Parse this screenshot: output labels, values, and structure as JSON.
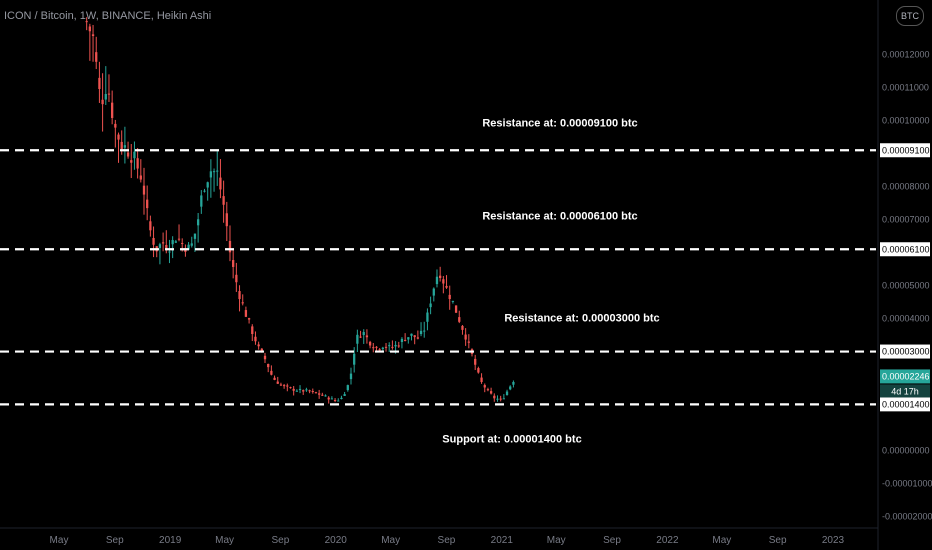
{
  "header": {
    "title": "ICON / Bitcoin, 1W, BINANCE, Heikin Ashi",
    "currency_badge": "BTC"
  },
  "colors": {
    "up": "#26a69a",
    "down": "#ef5350",
    "background": "#000000",
    "level_line": "#ffffff",
    "axis_text": "#787b86"
  },
  "chart_data": {
    "type": "candlestick",
    "symbol": "ICON / Bitcoin",
    "interval": "1W",
    "exchange": "BINANCE",
    "style": "Heikin Ashi",
    "x_tick_labels": [
      "May",
      "Sep",
      "2019",
      "May",
      "Sep",
      "2020",
      "May",
      "Sep",
      "2021",
      "May",
      "Sep",
      "2022",
      "May",
      "Sep",
      "2023"
    ],
    "x_tick_dates": [
      "2018-05",
      "2018-09",
      "2019-01",
      "2019-05",
      "2019-09",
      "2020-01",
      "2020-05",
      "2020-09",
      "2021-01",
      "2021-05",
      "2021-09",
      "2022-01",
      "2022-05",
      "2022-09",
      "2023-01"
    ],
    "y_tick_labels": [
      "0.00012000",
      "0.00011000",
      "0.00010000",
      "0.00008000",
      "0.00007000",
      "0.00005000",
      "0.00004000",
      "0.00000000",
      "-0.00001000",
      "-0.00002000"
    ],
    "y_tick_values": [
      0.00012,
      0.00011,
      0.0001,
      8e-05,
      7e-05,
      5e-05,
      4e-05,
      0,
      -1e-05,
      -2e-05
    ],
    "ylim": [
      -2.15e-05,
      0.0001305
    ],
    "current_price": {
      "label": "0.00002246",
      "value": 2.246e-05,
      "countdown": "4d 17h"
    },
    "levels": [
      {
        "value": 9.1e-05,
        "label": "0.00009100",
        "text": "Resistance at: 0.00009100 btc"
      },
      {
        "value": 6.1e-05,
        "label": "0.00006100",
        "text": "Resistance at: 0.00006100 btc"
      },
      {
        "value": 3e-05,
        "label": "0.00003000",
        "text": "Resistance at: 0.00003000 btc"
      },
      {
        "value": 1.4e-05,
        "label": "0.00001400",
        "text": "Support at: 0.00001400 btc"
      }
    ],
    "series_points": [
      [
        "2018-07-01",
        0.00013
      ],
      [
        "2018-07-15",
        0.000125
      ],
      [
        "2018-08-01",
        0.000105
      ],
      [
        "2018-08-15",
        0.000112
      ],
      [
        "2018-09-01",
        9.8e-05
      ],
      [
        "2018-09-15",
        9.3e-05
      ],
      [
        "2018-10-01",
        9.1e-05
      ],
      [
        "2018-10-15",
        8.8e-05
      ],
      [
        "2018-11-01",
        8.2e-05
      ],
      [
        "2018-11-15",
        6.8e-05
      ],
      [
        "2018-12-01",
        6.1e-05
      ],
      [
        "2018-12-15",
        6.3e-05
      ],
      [
        "2019-01-01",
        6.2e-05
      ],
      [
        "2019-01-15",
        6.5e-05
      ],
      [
        "2019-02-01",
        6.2e-05
      ],
      [
        "2019-02-15",
        6.1e-05
      ],
      [
        "2019-03-01",
        6.8e-05
      ],
      [
        "2019-03-15",
        8e-05
      ],
      [
        "2019-04-01",
        8.5e-05
      ],
      [
        "2019-04-15",
        8.4e-05
      ],
      [
        "2019-05-01",
        7.3e-05
      ],
      [
        "2019-05-15",
        5.8e-05
      ],
      [
        "2019-06-01",
        4.8e-05
      ],
      [
        "2019-06-15",
        4.2e-05
      ],
      [
        "2019-07-01",
        3.6e-05
      ],
      [
        "2019-07-15",
        3.1e-05
      ],
      [
        "2019-08-01",
        2.7e-05
      ],
      [
        "2019-08-15",
        2.2e-05
      ],
      [
        "2019-09-01",
        2e-05
      ],
      [
        "2019-09-15",
        1.9e-05
      ],
      [
        "2019-10-01",
        1.85e-05
      ],
      [
        "2019-10-15",
        1.82e-05
      ],
      [
        "2019-11-01",
        1.8e-05
      ],
      [
        "2019-11-15",
        1.75e-05
      ],
      [
        "2019-12-01",
        1.68e-05
      ],
      [
        "2019-12-15",
        1.6e-05
      ],
      [
        "2020-01-01",
        1.5e-05
      ],
      [
        "2020-01-15",
        1.6e-05
      ],
      [
        "2020-02-01",
        2.1e-05
      ],
      [
        "2020-02-15",
        3.4e-05
      ],
      [
        "2020-03-01",
        3.6e-05
      ],
      [
        "2020-03-15",
        3.3e-05
      ],
      [
        "2020-04-01",
        3.1e-05
      ],
      [
        "2020-04-15",
        3.2e-05
      ],
      [
        "2020-05-01",
        3.1e-05
      ],
      [
        "2020-05-15",
        3.2e-05
      ],
      [
        "2020-06-01",
        3.4e-05
      ],
      [
        "2020-06-15",
        3.5e-05
      ],
      [
        "2020-07-01",
        3.4e-05
      ],
      [
        "2020-07-15",
        3.7e-05
      ],
      [
        "2020-08-01",
        4.8e-05
      ],
      [
        "2020-08-15",
        5.5e-05
      ],
      [
        "2020-09-01",
        4.9e-05
      ],
      [
        "2020-09-15",
        4.5e-05
      ],
      [
        "2020-10-01",
        3.9e-05
      ],
      [
        "2020-10-15",
        3.4e-05
      ],
      [
        "2020-11-01",
        2.7e-05
      ],
      [
        "2020-11-15",
        2.1e-05
      ],
      [
        "2020-12-01",
        1.8e-05
      ],
      [
        "2020-12-15",
        1.6e-05
      ],
      [
        "2021-01-01",
        1.52e-05
      ],
      [
        "2021-01-15",
        1.85e-05
      ],
      [
        "2021-02-01",
        2.25e-05
      ]
    ]
  }
}
